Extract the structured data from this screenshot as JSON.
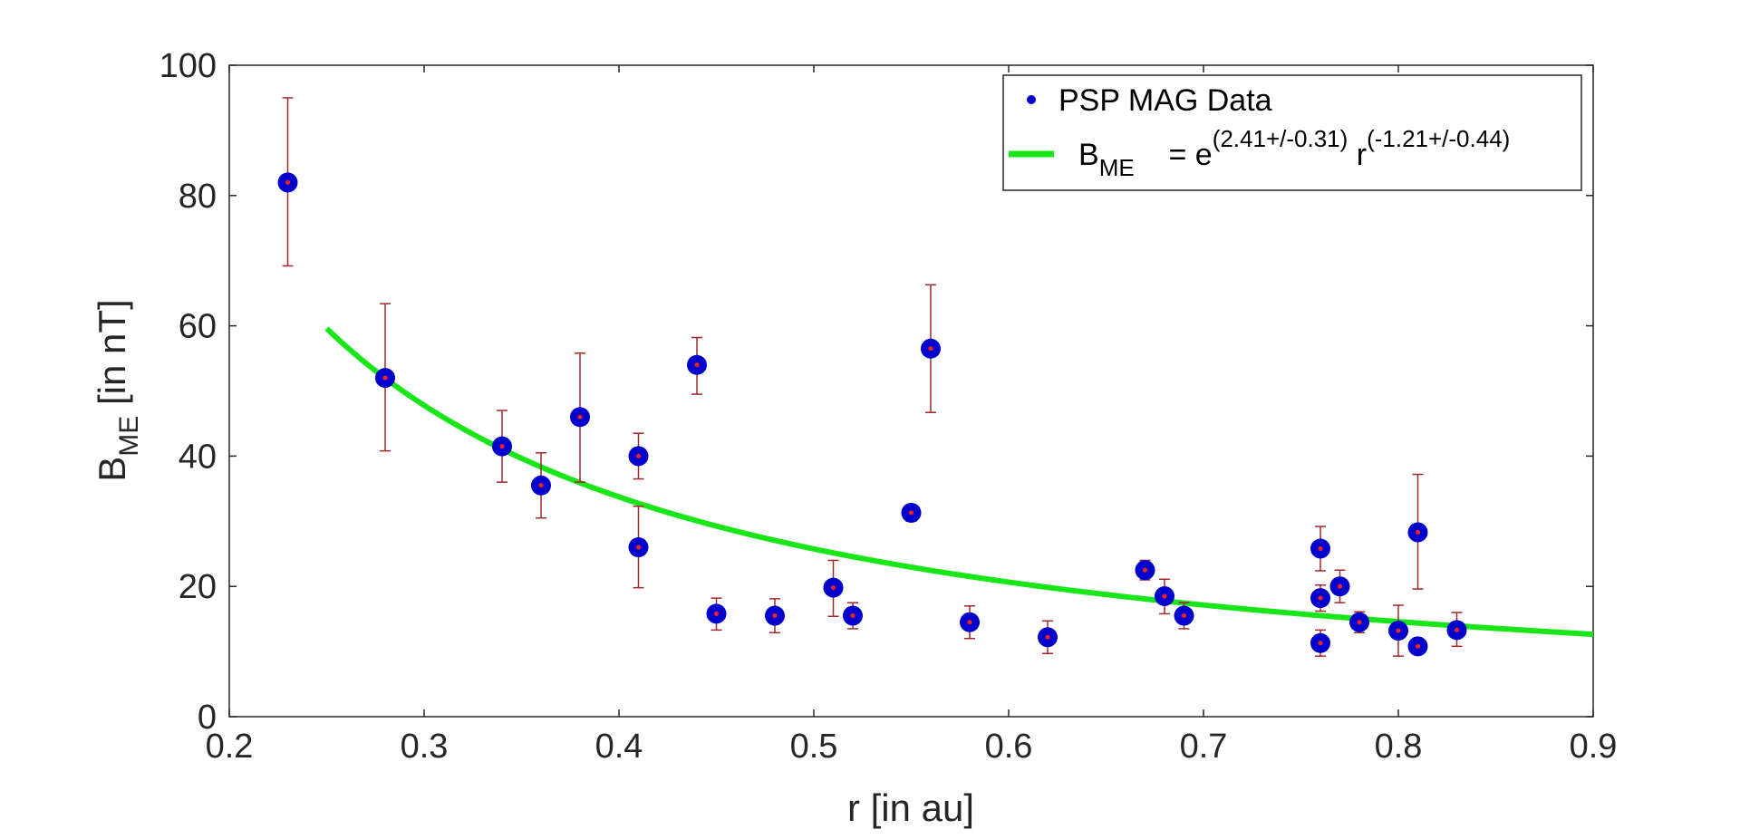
{
  "chart_data": {
    "type": "scatter",
    "title": "",
    "xlabel": "r   [in au]",
    "ylabel": {
      "main": "B",
      "sub": "ME",
      "rest": "   [in nT]"
    },
    "xlim": [
      0.2,
      0.9
    ],
    "ylim": [
      0,
      100
    ],
    "xticks": [
      0.2,
      0.3,
      0.4,
      0.5,
      0.6,
      0.7,
      0.8,
      0.9
    ],
    "xtick_labels": [
      "0.2",
      "0.3",
      "0.4",
      "0.5",
      "0.6",
      "0.7",
      "0.8",
      "0.9"
    ],
    "yticks": [
      0,
      20,
      40,
      60,
      80,
      100
    ],
    "ytick_labels": [
      "0",
      "20",
      "40",
      "60",
      "80",
      "100"
    ],
    "grid": false,
    "legend": {
      "position": "top-right",
      "entries": [
        {
          "label": "PSP MAG Data"
        },
        {
          "label_main": "B",
          "label_sub": "ME",
          "label_eq": "    = e",
          "label_sup1": "(2.41+/-0.31)",
          "label_r": " r",
          "label_sup2": "(-1.21+/-0.44)"
        }
      ]
    },
    "colors": {
      "marker": "#0000cc",
      "marker_center": "#ff2020",
      "errorbar": "#a0282c",
      "fit": "#19e619",
      "axis": "#262626"
    },
    "series": [
      {
        "name": "PSP MAG Data",
        "kind": "scatter_errorbar",
        "points": [
          {
            "x": 0.23,
            "y": 82,
            "lo": 69.2,
            "hi": 95.0
          },
          {
            "x": 0.28,
            "y": 52,
            "lo": 40.8,
            "hi": 63.4
          },
          {
            "x": 0.34,
            "y": 41.5,
            "lo": 36.0,
            "hi": 47.0
          },
          {
            "x": 0.36,
            "y": 35.5,
            "lo": 30.5,
            "hi": 40.5
          },
          {
            "x": 0.38,
            "y": 46,
            "lo": 36.0,
            "hi": 55.8
          },
          {
            "x": 0.41,
            "y": 40,
            "lo": 36.5,
            "hi": 43.5
          },
          {
            "x": 0.41,
            "y": 26,
            "lo": 19.8,
            "hi": 32.3
          },
          {
            "x": 0.44,
            "y": 54,
            "lo": 49.5,
            "hi": 58.2
          },
          {
            "x": 0.45,
            "y": 15.8,
            "lo": 13.3,
            "hi": 18.2
          },
          {
            "x": 0.48,
            "y": 15.5,
            "lo": 12.9,
            "hi": 18.1
          },
          {
            "x": 0.51,
            "y": 19.8,
            "lo": 15.4,
            "hi": 24.0
          },
          {
            "x": 0.52,
            "y": 15.5,
            "lo": 13.5,
            "hi": 17.5
          },
          {
            "x": 0.55,
            "y": 31.3,
            "lo": 30.0,
            "hi": 32.5
          },
          {
            "x": 0.56,
            "y": 56.5,
            "lo": 46.7,
            "hi": 66.3
          },
          {
            "x": 0.58,
            "y": 14.5,
            "lo": 12.0,
            "hi": 17.0
          },
          {
            "x": 0.62,
            "y": 12.2,
            "lo": 9.7,
            "hi": 14.7
          },
          {
            "x": 0.67,
            "y": 22.5,
            "lo": 21.0,
            "hi": 24.0
          },
          {
            "x": 0.68,
            "y": 18.5,
            "lo": 15.8,
            "hi": 21.1
          },
          {
            "x": 0.69,
            "y": 15.5,
            "lo": 13.5,
            "hi": 17.5
          },
          {
            "x": 0.76,
            "y": 25.8,
            "lo": 22.4,
            "hi": 29.2
          },
          {
            "x": 0.76,
            "y": 18.2,
            "lo": 16.2,
            "hi": 20.2
          },
          {
            "x": 0.76,
            "y": 11.3,
            "lo": 9.3,
            "hi": 13.3
          },
          {
            "x": 0.77,
            "y": 20,
            "lo": 17.5,
            "hi": 22.5
          },
          {
            "x": 0.78,
            "y": 14.5,
            "lo": 12.9,
            "hi": 16.1
          },
          {
            "x": 0.8,
            "y": 13.2,
            "lo": 9.3,
            "hi": 17.1
          },
          {
            "x": 0.81,
            "y": 28.3,
            "lo": 19.6,
            "hi": 37.2
          },
          {
            "x": 0.81,
            "y": 10.8,
            "lo": 9.8,
            "hi": 11.8
          },
          {
            "x": 0.83,
            "y": 13.3,
            "lo": 10.8,
            "hi": 16.0
          }
        ]
      },
      {
        "name": "B_ME fit",
        "kind": "power_law_fit",
        "coef_ln": 2.41,
        "exponent": -1.21,
        "x_start": 0.25,
        "x_end": 0.9
      }
    ]
  }
}
